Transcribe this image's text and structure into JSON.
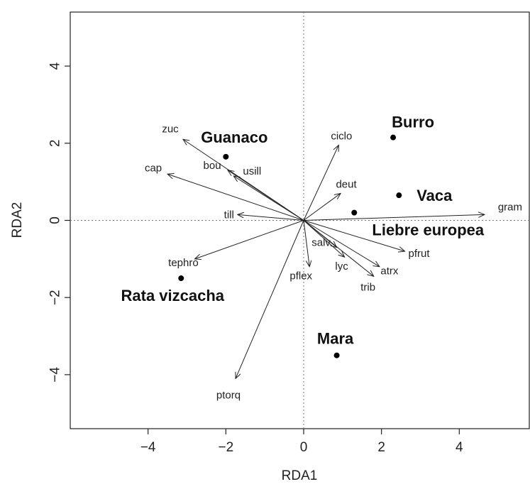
{
  "chart_data": {
    "type": "scatter",
    "title": "",
    "xlabel": "RDA1",
    "ylabel": "RDA2",
    "xlim": [
      -6,
      5.8
    ],
    "ylim": [
      -5.4,
      5.4
    ],
    "xticks": [
      -4,
      -2,
      0,
      2,
      4
    ],
    "yticks": [
      -4,
      -2,
      0,
      2,
      4
    ],
    "tick_labels_x": [
      "−4",
      "−2",
      "0",
      "2",
      "4"
    ],
    "tick_labels_y": [
      "−4",
      "−2",
      "0",
      "2",
      "4"
    ],
    "grid": false,
    "reference_lines": "dotted lines at x=0 and y=0",
    "colors": {
      "ink": "#222222",
      "reference": "#777777",
      "point": "#000000"
    },
    "arrows": [
      {
        "label": "zuc",
        "x": -3.1,
        "y": 2.1
      },
      {
        "label": "cap",
        "x": -3.5,
        "y": 1.2
      },
      {
        "label": "bou",
        "x": -1.95,
        "y": 1.3
      },
      {
        "label": "usill",
        "x": -1.8,
        "y": 1.15
      },
      {
        "label": "till",
        "x": -1.7,
        "y": 0.15
      },
      {
        "label": "tephro",
        "x": -2.8,
        "y": -1.0
      },
      {
        "label": "ptorq",
        "x": -1.75,
        "y": -4.1
      },
      {
        "label": "ciclo",
        "x": 0.9,
        "y": 1.95
      },
      {
        "label": "deut",
        "x": 0.95,
        "y": 0.7
      },
      {
        "label": "gram",
        "x": 4.65,
        "y": 0.15
      },
      {
        "label": "pfrut",
        "x": 2.6,
        "y": -0.8
      },
      {
        "label": "atrx",
        "x": 1.95,
        "y": -1.2
      },
      {
        "label": "trib",
        "x": 1.8,
        "y": -1.45
      },
      {
        "label": "lyc",
        "x": 1.05,
        "y": -0.95
      },
      {
        "label": "salv",
        "x": 0.85,
        "y": -0.7
      },
      {
        "label": "pflex",
        "x": 0.15,
        "y": -1.2
      }
    ],
    "points": [
      {
        "label": "Burro",
        "x": 2.3,
        "y": 2.15
      },
      {
        "label": "Guanaco",
        "x": -2.0,
        "y": 1.65
      },
      {
        "label": "Vaca",
        "x": 2.45,
        "y": 0.65
      },
      {
        "label": "Liebre europea",
        "x": 1.3,
        "y": 0.2
      },
      {
        "label": "Rata vizcacha",
        "x": -3.15,
        "y": -1.5
      },
      {
        "label": "Mara",
        "x": 0.85,
        "y": -3.5
      }
    ]
  }
}
